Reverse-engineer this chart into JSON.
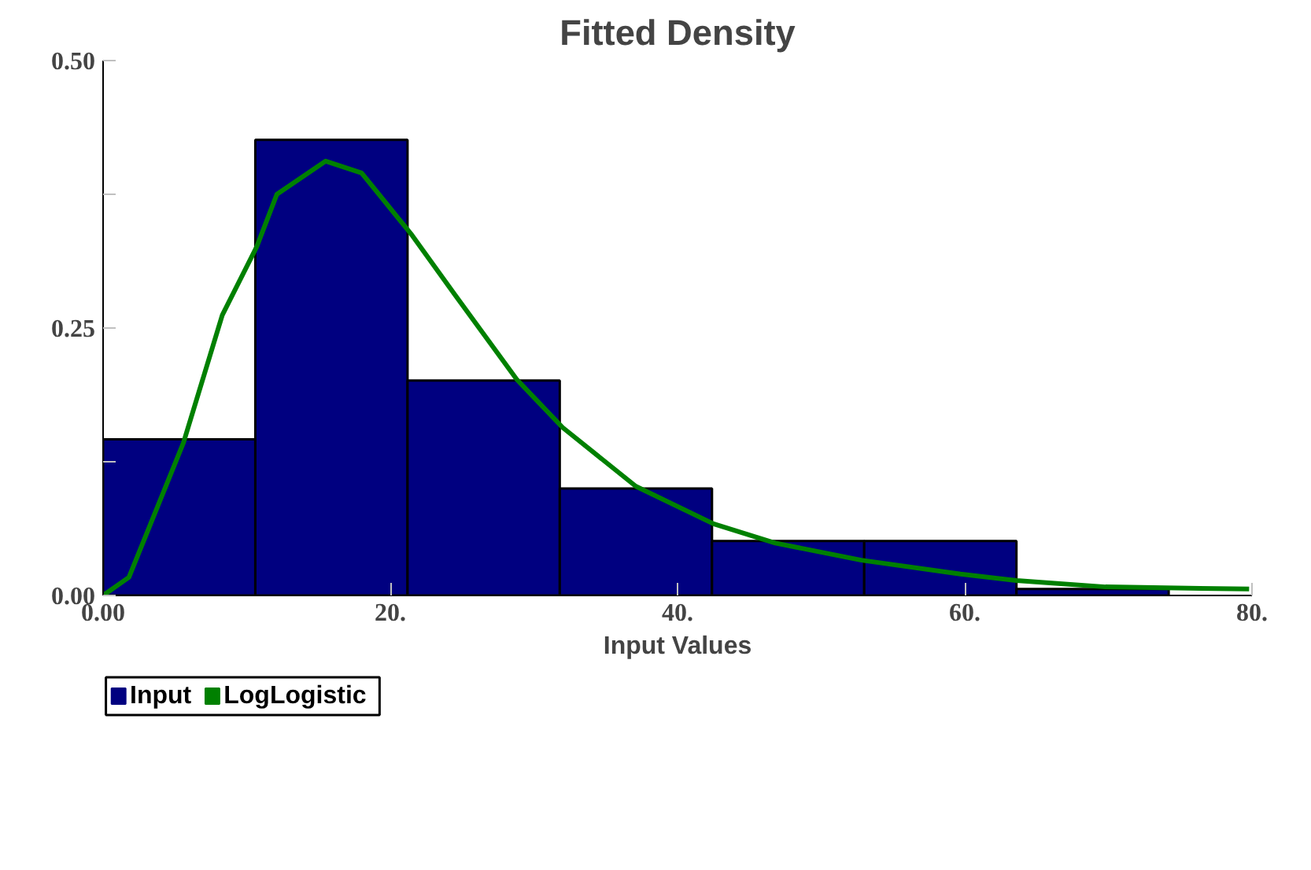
{
  "chart_data": {
    "type": "histogram",
    "title": "Fitted Density",
    "xlabel": "Input Values",
    "bins": [
      0,
      10.6,
      21.2,
      31.8,
      42.4,
      53.0,
      63.6,
      74.2
    ],
    "series": [
      {
        "name": "Input",
        "color": "#000080",
        "values": [
          0.146,
          0.426,
          0.201,
          0.1,
          0.051,
          0.051,
          0.006
        ]
      },
      {
        "name": "LogLogistic",
        "type": "line",
        "color": "#008000",
        "x": [
          0,
          1.8,
          5.6,
          8.3,
          10.7,
          12.1,
          15.5,
          18.0,
          21.5,
          24.5,
          28.8,
          32.0,
          37.1,
          42.5,
          46.8,
          52.8,
          59.7,
          63.6,
          69.8,
          79.8
        ],
        "values": [
          0,
          0.017,
          0.143,
          0.262,
          0.326,
          0.375,
          0.406,
          0.395,
          0.337,
          0.281,
          0.202,
          0.157,
          0.102,
          0.067,
          0.049,
          0.033,
          0.02,
          0.014,
          0.008,
          0.006
        ]
      }
    ],
    "xlim": [
      0,
      80
    ],
    "ylim": [
      0,
      0.5
    ],
    "xticks": [
      {
        "value": 0,
        "label": "0.00"
      },
      {
        "value": 20,
        "label": "20."
      },
      {
        "value": 40,
        "label": "40."
      },
      {
        "value": 60,
        "label": "60."
      },
      {
        "value": 80,
        "label": "80."
      }
    ],
    "yticks": [
      {
        "value": 0,
        "label": "0.00"
      },
      {
        "value": 0.125,
        "label": null
      },
      {
        "value": 0.25,
        "label": "0.25"
      },
      {
        "value": 0.375,
        "label": null
      },
      {
        "value": 0.5,
        "label": "0.50"
      }
    ],
    "grid": false,
    "legend": "bottom left",
    "marker": "none",
    "line_style": "solid"
  }
}
